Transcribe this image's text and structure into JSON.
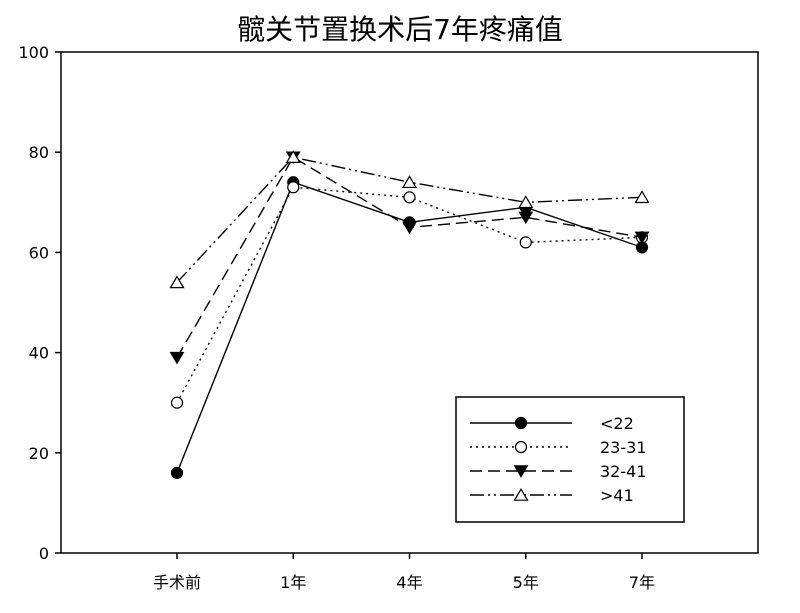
{
  "chart_data": {
    "type": "line",
    "title": "髋关节置换术后7年疼痛值",
    "xlabel": "",
    "ylabel": "",
    "categories": [
      "手术前",
      "1年",
      "4年",
      "5年",
      "7年"
    ],
    "ylim": [
      0,
      100
    ],
    "yticks": [
      0,
      20,
      40,
      60,
      80,
      100
    ],
    "grid": false,
    "legend_position": "bottom-right",
    "series": [
      {
        "name": "<22",
        "values": [
          16,
          74,
          66,
          69,
          61
        ],
        "marker": "filled-circle",
        "dash": "solid"
      },
      {
        "name": "23-31",
        "values": [
          30,
          73,
          71,
          62,
          63
        ],
        "marker": "open-circle",
        "dash": "dotted"
      },
      {
        "name": "32-41",
        "values": [
          39,
          79,
          65,
          67,
          63
        ],
        "marker": "filled-triangle-down",
        "dash": "dashed"
      },
      {
        "name": ">41",
        "values": [
          54,
          79,
          74,
          70,
          71
        ],
        "marker": "open-triangle-up",
        "dash": "dash-dot-dot"
      }
    ]
  }
}
